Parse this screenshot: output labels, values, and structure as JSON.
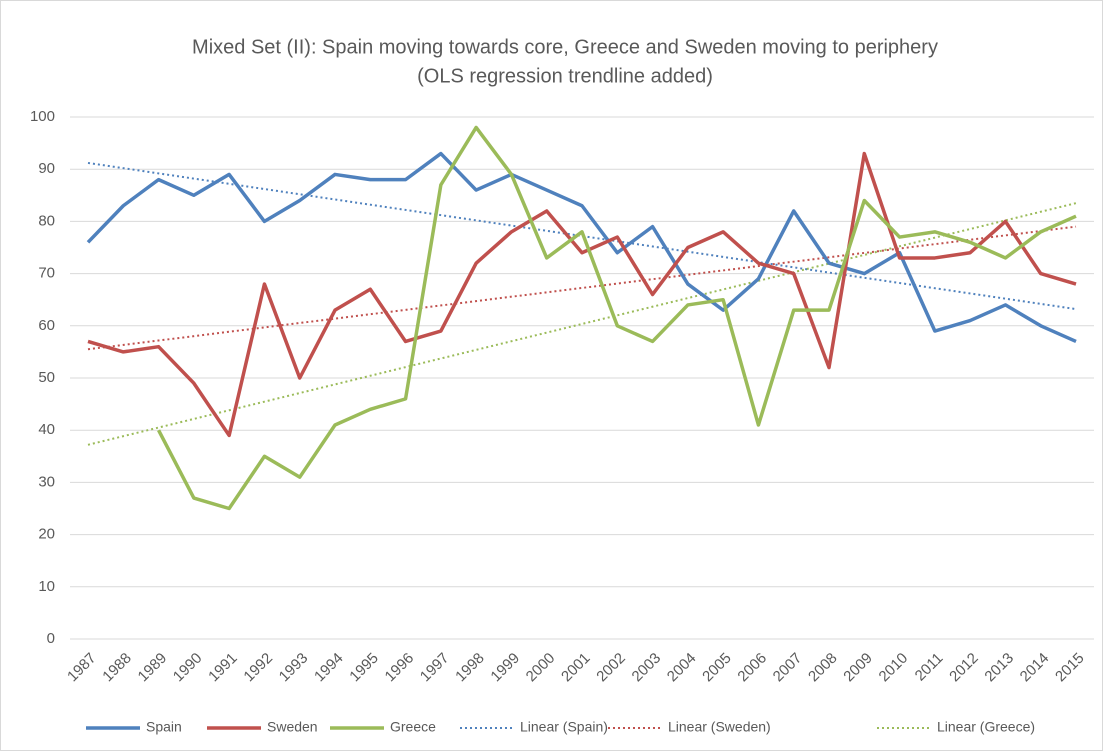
{
  "chart_data": {
    "type": "line",
    "title": "Mixed Set (II): Spain moving towards core, Greece and Sweden moving to periphery",
    "subtitle": "(OLS regression trendline added)",
    "categories": [
      "1987",
      "1988",
      "1989",
      "1990",
      "1991",
      "1992",
      "1993",
      "1994",
      "1995",
      "1996",
      "1997",
      "1998",
      "1999",
      "2000",
      "2001",
      "2002",
      "2003",
      "2004",
      "2005",
      "2006",
      "2007",
      "2008",
      "2009",
      "2010",
      "2011",
      "2012",
      "2013",
      "2014",
      "2015"
    ],
    "series": [
      {
        "name": "Spain",
        "color": "#4f81bd",
        "values": [
          76,
          83,
          88,
          85,
          89,
          80,
          84,
          89,
          88,
          88,
          93,
          86,
          89,
          86,
          83,
          74,
          79,
          68,
          63,
          69,
          82,
          72,
          70,
          74,
          59,
          61,
          64,
          60,
          57
        ]
      },
      {
        "name": "Sweden",
        "color": "#c0504d",
        "values": [
          57,
          55,
          56,
          49,
          39,
          68,
          50,
          63,
          67,
          57,
          59,
          72,
          78,
          82,
          74,
          77,
          66,
          75,
          78,
          72,
          70,
          52,
          93,
          73,
          73,
          74,
          80,
          70,
          68
        ]
      },
      {
        "name": "Greece",
        "color": "#9bbb59",
        "values": [
          null,
          null,
          40,
          27,
          25,
          35,
          31,
          41,
          44,
          46,
          87,
          98,
          89,
          73,
          78,
          60,
          57,
          64,
          65,
          41,
          63,
          63,
          84,
          77,
          78,
          76,
          73,
          78,
          81
        ]
      }
    ],
    "trendlines": [
      {
        "name": "Linear (Spain)",
        "color": "#4f81bd",
        "endpoints": [
          91.2,
          63.2
        ]
      },
      {
        "name": "Linear (Sweden)",
        "color": "#c0504d",
        "endpoints": [
          55.5,
          79
        ]
      },
      {
        "name": "Linear (Greece)",
        "color": "#9bbb59",
        "endpoints": [
          37.2,
          83.5
        ]
      }
    ],
    "ylim": [
      0,
      100
    ],
    "yticks": [
      0,
      10,
      20,
      30,
      40,
      50,
      60,
      70,
      80,
      90,
      100
    ],
    "grid": true,
    "legend": "bottom"
  }
}
